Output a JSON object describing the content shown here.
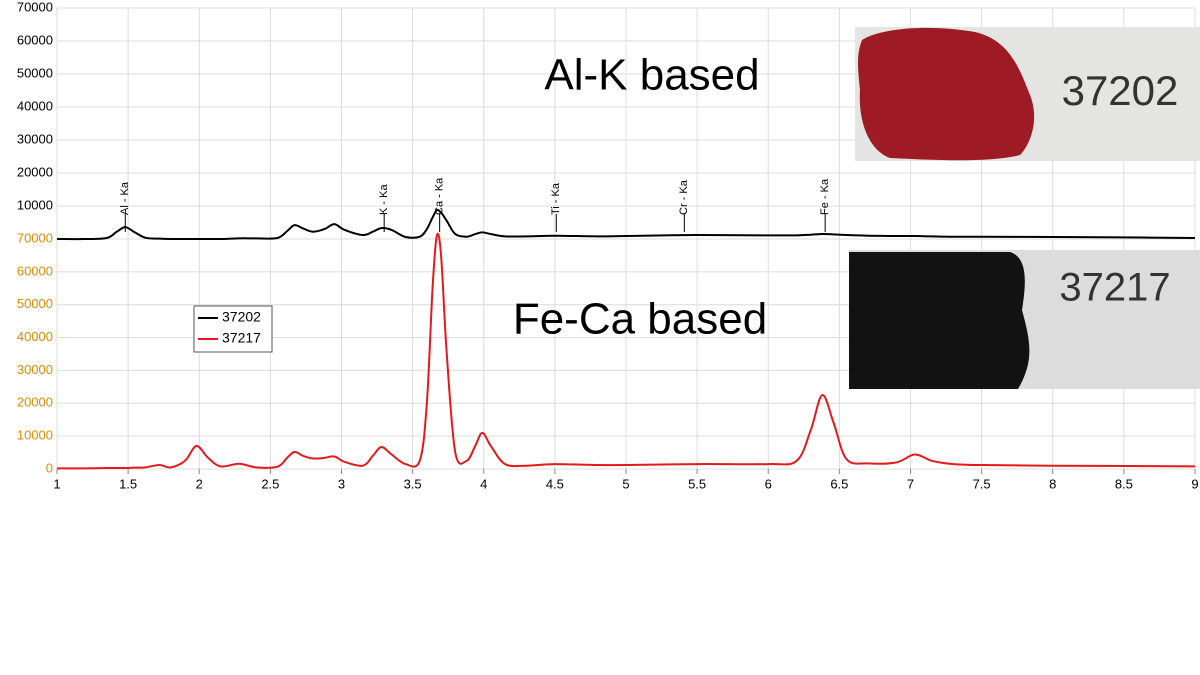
{
  "chart_data": [
    {
      "type": "line",
      "x": [
        1,
        1.2,
        1.35,
        1.42,
        1.48,
        1.54,
        1.62,
        1.72,
        1.8,
        1.9,
        1.98,
        2.06,
        2.15,
        2.28,
        2.4,
        2.55,
        2.62,
        2.67,
        2.73,
        2.8,
        2.88,
        2.95,
        3.02,
        3.15,
        3.22,
        3.28,
        3.35,
        3.45,
        3.55,
        3.6,
        3.64,
        3.67,
        3.7,
        3.74,
        3.8,
        3.88,
        3.94,
        3.99,
        4.05,
        4.15,
        4.3,
        4.5,
        4.8,
        5.0,
        5.5,
        6.0,
        6.2,
        6.3,
        6.38,
        6.46,
        6.55,
        6.7,
        6.9,
        7.03,
        7.15,
        7.3,
        7.5,
        8.0,
        8.5,
        9
      ],
      "series": [
        {
          "name": "37202",
          "color": "#000000",
          "values": [
            0,
            0,
            300,
            2200,
            3600,
            2200,
            400,
            100,
            0,
            0,
            0,
            0,
            0,
            200,
            200,
            300,
            2500,
            4200,
            3200,
            2200,
            3000,
            4500,
            2800,
            1200,
            2200,
            3300,
            2800,
            600,
            700,
            3000,
            6500,
            8700,
            8000,
            5500,
            1500,
            700,
            1500,
            2000,
            1500,
            800,
            800,
            1000,
            800,
            900,
            1200,
            1100,
            1100,
            1300,
            1500,
            1400,
            1200,
            1000,
            900,
            900,
            800,
            700,
            700,
            600,
            500,
            300
          ]
        }
      ],
      "xlim": [
        1,
        9
      ],
      "ylim": [
        0,
        70000
      ],
      "yticks": [
        10000,
        20000,
        30000,
        40000,
        50000,
        60000,
        70000
      ],
      "tick_color": "#000000",
      "grid": true,
      "annotation": "Al-K based",
      "peaks": [
        {
          "x": 1.48,
          "label": "Al - Ka"
        },
        {
          "x": 3.3,
          "label": "K - Ka"
        },
        {
          "x": 3.69,
          "label": "Ca - Ka"
        },
        {
          "x": 4.51,
          "label": "Ti - Ka"
        },
        {
          "x": 5.41,
          "label": "Cr - Ka"
        },
        {
          "x": 6.4,
          "label": "Fe - Ka"
        }
      ]
    },
    {
      "type": "line",
      "x": [
        1,
        1.2,
        1.35,
        1.42,
        1.48,
        1.54,
        1.62,
        1.72,
        1.8,
        1.9,
        1.98,
        2.06,
        2.15,
        2.28,
        2.4,
        2.55,
        2.62,
        2.67,
        2.73,
        2.8,
        2.88,
        2.95,
        3.02,
        3.15,
        3.22,
        3.28,
        3.35,
        3.45,
        3.55,
        3.6,
        3.64,
        3.67,
        3.7,
        3.74,
        3.8,
        3.88,
        3.94,
        3.99,
        4.05,
        4.15,
        4.3,
        4.5,
        4.8,
        5.0,
        5.5,
        6.0,
        6.2,
        6.3,
        6.38,
        6.46,
        6.55,
        6.7,
        6.9,
        7.03,
        7.15,
        7.3,
        7.5,
        8.0,
        8.5,
        9
      ],
      "series": [
        {
          "name": "37217",
          "color": "#e31a1c",
          "values": [
            200,
            200,
            300,
            300,
            300,
            400,
            500,
            1200,
            500,
            2500,
            7000,
            3500,
            800,
            1600,
            500,
            700,
            3500,
            5200,
            4000,
            3200,
            3400,
            3800,
            2200,
            1000,
            4000,
            6700,
            4500,
            1500,
            2500,
            20000,
            55000,
            71000,
            65000,
            35000,
            5000,
            2500,
            7000,
            11000,
            7000,
            1500,
            1000,
            1500,
            1200,
            1200,
            1500,
            1500,
            2500,
            12000,
            22500,
            14000,
            3000,
            1700,
            2000,
            4400,
            2500,
            1500,
            1200,
            1000,
            900,
            800
          ]
        }
      ],
      "xlim": [
        1,
        9
      ],
      "xticks": [
        1,
        1.5,
        2,
        2.5,
        3,
        3.5,
        4,
        4.5,
        5,
        5.5,
        6,
        6.5,
        7,
        7.5,
        8,
        8.5,
        9
      ],
      "ylim": [
        0,
        70000
      ],
      "yticks": [
        0,
        10000,
        20000,
        30000,
        40000,
        50000,
        60000,
        70000
      ],
      "tick_color": "#e08a00",
      "grid": true,
      "annotation": "Fe-Ca based"
    }
  ],
  "photos": [
    {
      "label": "37202"
    },
    {
      "label": "37217"
    }
  ]
}
